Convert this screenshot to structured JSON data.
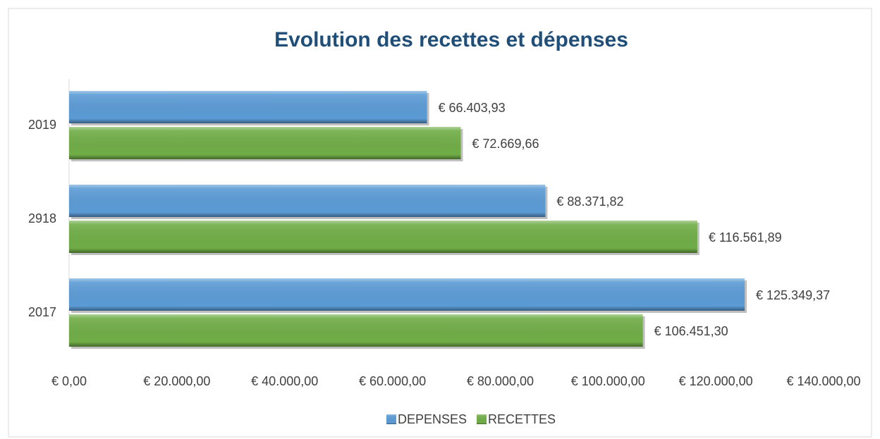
{
  "chart_data": {
    "type": "bar",
    "orientation": "horizontal",
    "title": "Evolution des recettes et dépenses",
    "categories": [
      "2017",
      "2918",
      "2019"
    ],
    "series": [
      {
        "name": "DEPENSES",
        "color": "#5b9bd5",
        "values": [
          125349.37,
          88371.82,
          66403.93
        ],
        "value_labels": [
          "€ 125.349,37",
          "€ 88.371,82",
          "€ 66.403,93"
        ]
      },
      {
        "name": "RECETTES",
        "color": "#70ad47",
        "values": [
          106451.3,
          116561.89,
          72669.66
        ],
        "value_labels": [
          "€ 106.451,30",
          "€ 116.561,89",
          "€ 72.669,66"
        ]
      }
    ],
    "xlim": [
      0,
      140000
    ],
    "xticks": [
      {
        "value": 0,
        "label": "€ 0,00"
      },
      {
        "value": 20000,
        "label": "€ 20.000,00"
      },
      {
        "value": 40000,
        "label": "€ 40.000,00"
      },
      {
        "value": 60000,
        "label": "€ 60.000,00"
      },
      {
        "value": 80000,
        "label": "€ 80.000,00"
      },
      {
        "value": 100000,
        "label": "€ 100.000,00"
      },
      {
        "value": 120000,
        "label": "€ 120.000,00"
      },
      {
        "value": 140000,
        "label": "€ 140.000,00"
      }
    ],
    "grid": false,
    "legend": "bottom"
  }
}
